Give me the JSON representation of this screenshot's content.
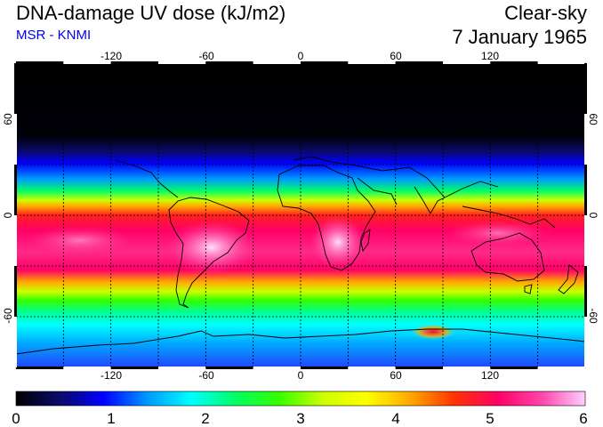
{
  "header": {
    "title": "DNA-damage UV dose (kJ/m2)",
    "source": "MSR - KNMI",
    "condition": "Clear-sky",
    "date": "7 January 1965",
    "source_color": "#0000ee"
  },
  "map": {
    "lon_ticks": [
      "-120",
      "-60",
      "0",
      "60",
      "120"
    ],
    "lat_ticks_left": [
      "60",
      "0",
      "-60"
    ],
    "lat_ticks_right": [
      "60",
      "0",
      "-60"
    ],
    "lon_range": [
      -180,
      180
    ],
    "lat_range": [
      -90,
      90
    ],
    "gridlines": "dashed every 30 degrees"
  },
  "colorbar": {
    "ticks": [
      "0",
      "1",
      "2",
      "3",
      "4",
      "5",
      "6"
    ],
    "range": [
      0,
      6
    ],
    "colors": [
      "#000000",
      "#0a0a6a",
      "#0000ff",
      "#0099ff",
      "#00ffff",
      "#00ff66",
      "#33ff00",
      "#ccff00",
      "#ffff00",
      "#ffaa00",
      "#ff3300",
      "#ff0066",
      "#ff44aa",
      "#ffd0ff"
    ]
  }
}
